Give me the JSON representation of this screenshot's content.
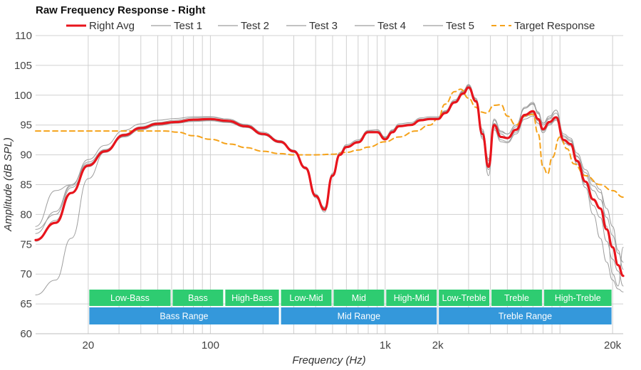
{
  "chart_data": {
    "type": "line",
    "title": "Raw Frequency Response - Right",
    "xlabel": "Frequency (Hz)",
    "ylabel": "Amplitude (dB SPL)",
    "xscale": "log",
    "xlim": [
      10,
      23000
    ],
    "ylim": [
      60,
      110
    ],
    "y_ticks": [
      60,
      65,
      70,
      75,
      80,
      85,
      90,
      95,
      100,
      105,
      110
    ],
    "x_ticks": [
      {
        "value": 20,
        "label": "20"
      },
      {
        "value": 100,
        "label": "100"
      },
      {
        "value": 1000,
        "label": "1k"
      },
      {
        "value": 2000,
        "label": "2k"
      },
      {
        "value": 20000,
        "label": "20k"
      }
    ],
    "grid": true,
    "legend": "top",
    "legend_entries": [
      {
        "name": "Right Avg",
        "color": "#e8141c",
        "style": "solid"
      },
      {
        "name": "Test 1",
        "color": "#9e9e9e",
        "style": "solid"
      },
      {
        "name": "Test 2",
        "color": "#9e9e9e",
        "style": "solid"
      },
      {
        "name": "Test 3",
        "color": "#9e9e9e",
        "style": "solid"
      },
      {
        "name": "Test 4",
        "color": "#9e9e9e",
        "style": "solid"
      },
      {
        "name": "Test 5",
        "color": "#9e9e9e",
        "style": "solid"
      },
      {
        "name": "Target Response",
        "color": "#f5a21a",
        "style": "dashed"
      }
    ],
    "series": [
      {
        "name": "Right Avg",
        "x": [
          10,
          13,
          16,
          20,
          25,
          32,
          40,
          50,
          63,
          80,
          100,
          125,
          160,
          200,
          250,
          300,
          350,
          400,
          450,
          500,
          550,
          600,
          700,
          800,
          900,
          1000,
          1100,
          1200,
          1400,
          1600,
          1800,
          2000,
          2200,
          2500,
          2800,
          3000,
          3300,
          3600,
          3900,
          4200,
          4600,
          5000,
          5600,
          6300,
          7000,
          7500,
          8000,
          8700,
          9500,
          10500,
          11500,
          12500,
          14000,
          15500,
          17000,
          18500,
          20000,
          21500,
          23000
        ],
        "y": [
          75.7,
          78.6,
          83.6,
          88.2,
          90.6,
          93.3,
          94.5,
          95.2,
          95.5,
          95.9,
          96.0,
          95.7,
          94.8,
          93.5,
          92.2,
          90.6,
          87.8,
          83.1,
          80.8,
          86.5,
          90.0,
          91.3,
          92.1,
          93.8,
          93.8,
          92.6,
          93.8,
          94.8,
          95.0,
          95.8,
          96.0,
          96.0,
          97.0,
          98.8,
          100.3,
          101.3,
          99.0,
          93.5,
          88.0,
          95.0,
          93.0,
          92.8,
          94.2,
          96.7,
          97.3,
          96.0,
          94.3,
          95.5,
          96.3,
          92.5,
          91.8,
          89.0,
          85.5,
          82.5,
          81.0,
          77.5,
          74.5,
          71.5,
          69.7
        ]
      },
      {
        "name": "Test 1",
        "x": [
          10,
          13,
          16,
          20,
          25,
          32,
          40,
          50,
          63,
          80,
          100,
          125,
          160,
          200,
          250,
          300,
          350,
          400,
          450,
          500,
          550,
          600,
          700,
          800,
          900,
          1000,
          1100,
          1200,
          1400,
          1600,
          1800,
          2000,
          2200,
          2500,
          2800,
          3000,
          3300,
          3600,
          3900,
          4200,
          4600,
          5000,
          5600,
          6300,
          7000,
          7500,
          8000,
          8700,
          9500,
          10500,
          11500,
          12500,
          14000,
          15500,
          17000,
          18500,
          20000,
          21500,
          23000
        ],
        "y": [
          77.5,
          80.0,
          84.8,
          89.2,
          91.6,
          94.1,
          95.2,
          95.8,
          96.1,
          96.4,
          96.4,
          96.0,
          95.0,
          93.6,
          92.2,
          90.5,
          87.6,
          82.8,
          80.4,
          86.3,
          89.9,
          91.3,
          92.2,
          94.0,
          94.2,
          93.0,
          94.1,
          95.0,
          95.2,
          96.0,
          96.2,
          96.2,
          97.3,
          99.2,
          100.8,
          101.8,
          99.5,
          94.3,
          89.3,
          95.8,
          93.8,
          93.5,
          95.0,
          97.8,
          98.5,
          97.0,
          95.3,
          96.5,
          97.5,
          93.0,
          92.3,
          89.8,
          86.5,
          84.0,
          82.5,
          79.5,
          76.5,
          73.5,
          72.0
        ]
      },
      {
        "name": "Test 2",
        "x": [
          10,
          13,
          16,
          20,
          25,
          32,
          40,
          50,
          63,
          80,
          100,
          125,
          160,
          200,
          250,
          300,
          350,
          400,
          450,
          500,
          550,
          600,
          700,
          800,
          900,
          1000,
          1100,
          1200,
          1400,
          1600,
          1800,
          2000,
          2200,
          2500,
          2800,
          3000,
          3300,
          3600,
          3900,
          4200,
          4600,
          5000,
          5600,
          6300,
          7000,
          7500,
          8000,
          8700,
          9500,
          10500,
          11500,
          12500,
          14000,
          15500,
          17000,
          18500,
          20000,
          21500,
          23000
        ],
        "y": [
          66.5,
          69.0,
          76.0,
          86.0,
          90.5,
          93.0,
          94.2,
          94.9,
          95.3,
          95.6,
          95.7,
          95.4,
          94.6,
          93.3,
          92.0,
          90.4,
          87.7,
          83.1,
          81.0,
          86.6,
          90.1,
          91.4,
          92.2,
          93.8,
          93.9,
          92.8,
          93.9,
          94.9,
          95.1,
          95.9,
          96.1,
          96.1,
          97.1,
          99.0,
          100.6,
          101.6,
          99.2,
          93.8,
          88.5,
          95.3,
          93.5,
          92.9,
          94.7,
          97.8,
          98.6,
          96.9,
          95.0,
          96.0,
          97.0,
          93.2,
          92.5,
          89.7,
          87.0,
          84.8,
          83.7,
          81.0,
          78.0,
          74.0,
          70.8
        ]
      },
      {
        "name": "Test 3",
        "x": [
          10,
          13,
          16,
          20,
          25,
          32,
          40,
          50,
          63,
          80,
          100,
          125,
          160,
          200,
          250,
          300,
          350,
          400,
          450,
          500,
          550,
          600,
          700,
          800,
          900,
          1000,
          1100,
          1200,
          1400,
          1600,
          1800,
          2000,
          2200,
          2500,
          2800,
          3000,
          3300,
          3600,
          3900,
          4200,
          4600,
          5000,
          5600,
          6300,
          7000,
          7500,
          8000,
          8700,
          9500,
          10500,
          11500,
          12500,
          14000,
          15500,
          17000,
          18500,
          20000,
          21500,
          23000
        ],
        "y": [
          78.0,
          84.0,
          85.0,
          88.8,
          90.9,
          93.5,
          94.7,
          95.4,
          95.8,
          96.2,
          96.3,
          96.0,
          95.1,
          93.8,
          92.4,
          90.8,
          88.0,
          83.4,
          81.2,
          86.9,
          90.4,
          91.7,
          92.5,
          94.1,
          94.2,
          93.0,
          94.2,
          95.2,
          95.4,
          96.2,
          96.4,
          96.4,
          97.4,
          99.2,
          100.7,
          101.7,
          99.4,
          94.0,
          89.0,
          96.0,
          94.0,
          93.5,
          95.0,
          98.0,
          98.8,
          97.2,
          95.3,
          96.2,
          97.5,
          93.5,
          92.8,
          90.3,
          87.5,
          85.5,
          84.2,
          78.0,
          70.0,
          68.0,
          74.5
        ]
      },
      {
        "name": "Test 4",
        "x": [
          10,
          13,
          16,
          20,
          25,
          32,
          40,
          50,
          63,
          80,
          100,
          125,
          160,
          200,
          250,
          300,
          350,
          400,
          450,
          500,
          550,
          600,
          700,
          800,
          900,
          1000,
          1100,
          1200,
          1400,
          1600,
          1800,
          2000,
          2200,
          2500,
          2800,
          3000,
          3300,
          3600,
          3900,
          4200,
          4600,
          5000,
          5600,
          6300,
          7000,
          7500,
          8000,
          8700,
          9500,
          10500,
          11500,
          12500,
          14000,
          15500,
          17000,
          18500,
          20000,
          21500,
          23000
        ],
        "y": [
          76.8,
          80.5,
          85.0,
          88.5,
          90.8,
          93.3,
          94.5,
          95.1,
          95.4,
          95.7,
          95.8,
          95.5,
          94.7,
          93.4,
          92.1,
          90.6,
          87.9,
          83.3,
          81.1,
          86.7,
          90.2,
          91.5,
          92.3,
          93.9,
          94.0,
          92.9,
          94.0,
          94.9,
          95.1,
          95.9,
          96.1,
          96.2,
          97.2,
          99.0,
          100.5,
          101.4,
          98.8,
          92.7,
          86.5,
          94.2,
          92.2,
          92.0,
          93.5,
          96.0,
          96.5,
          95.3,
          93.7,
          95.0,
          95.8,
          92.0,
          91.5,
          88.5,
          84.5,
          80.0,
          76.0,
          72.0,
          69.0,
          67.5,
          67.0
        ]
      },
      {
        "name": "Test 5",
        "x": [
          10,
          13,
          16,
          20,
          25,
          32,
          40,
          50,
          63,
          80,
          100,
          125,
          160,
          200,
          250,
          300,
          350,
          400,
          450,
          500,
          550,
          600,
          700,
          800,
          900,
          1000,
          1100,
          1200,
          1400,
          1600,
          1800,
          2000,
          2200,
          2500,
          2800,
          3000,
          3300,
          3600,
          3900,
          4200,
          4600,
          5000,
          5600,
          6300,
          7000,
          7500,
          8000,
          8700,
          9500,
          10500,
          11500,
          12500,
          14000,
          15500,
          17000,
          18500,
          20000,
          21500,
          23000
        ],
        "y": [
          75.5,
          79.0,
          84.5,
          88.0,
          90.4,
          93.1,
          94.3,
          95.0,
          95.4,
          95.7,
          95.8,
          95.5,
          94.6,
          93.3,
          92.0,
          90.5,
          87.7,
          83.0,
          80.7,
          86.4,
          90.0,
          91.3,
          92.1,
          93.7,
          93.8,
          92.7,
          93.8,
          94.8,
          95.0,
          95.8,
          96.0,
          96.1,
          97.1,
          98.9,
          100.4,
          101.3,
          98.9,
          93.0,
          87.5,
          94.5,
          92.5,
          92.2,
          93.8,
          96.4,
          97.0,
          95.7,
          94.0,
          95.2,
          96.0,
          92.3,
          91.7,
          88.8,
          85.0,
          81.5,
          79.5,
          75.5,
          72.5,
          70.5,
          68.0
        ]
      },
      {
        "name": "Target Response",
        "x": [
          10,
          20,
          30,
          40,
          55,
          65,
          80,
          100,
          130,
          160,
          200,
          250,
          300,
          400,
          500,
          600,
          700,
          800,
          1000,
          1200,
          1500,
          1800,
          2000,
          2200,
          2500,
          2700,
          3000,
          3300,
          3500,
          3800,
          4200,
          4600,
          5000,
          5600,
          6300,
          7000,
          7500,
          8000,
          8500,
          9000,
          10000,
          11000,
          12000,
          14000,
          17000,
          20000,
          23000
        ],
        "y": [
          94.0,
          94.0,
          94.0,
          94.0,
          94.0,
          93.8,
          93.2,
          92.6,
          91.8,
          91.2,
          90.6,
          90.2,
          90.0,
          90.0,
          90.1,
          90.4,
          90.8,
          91.3,
          92.2,
          93.0,
          94.0,
          95.0,
          96.0,
          98.5,
          100.6,
          101.0,
          99.5,
          98.0,
          97.2,
          97.0,
          98.3,
          98.4,
          96.5,
          95.0,
          96.5,
          96.8,
          93.5,
          88.0,
          86.8,
          89.5,
          93.0,
          91.0,
          88.5,
          86.5,
          85.0,
          84.0,
          82.9
        ]
      }
    ],
    "bands_row1": [
      {
        "label": "Low-Bass",
        "from": 20,
        "to": 60
      },
      {
        "label": "Bass",
        "from": 60,
        "to": 120
      },
      {
        "label": "High-Bass",
        "from": 120,
        "to": 250
      },
      {
        "label": "Low-Mid",
        "from": 250,
        "to": 500
      },
      {
        "label": "Mid",
        "from": 500,
        "to": 1000
      },
      {
        "label": "High-Mid",
        "from": 1000,
        "to": 2000
      },
      {
        "label": "Low-Treble",
        "from": 2000,
        "to": 4000
      },
      {
        "label": "Treble",
        "from": 4000,
        "to": 8000
      },
      {
        "label": "High-Treble",
        "from": 8000,
        "to": 20000
      }
    ],
    "bands_row2": [
      {
        "label": "Bass Range",
        "from": 20,
        "to": 250
      },
      {
        "label": "Mid Range",
        "from": 250,
        "to": 2000
      },
      {
        "label": "Treble Range",
        "from": 2000,
        "to": 20000
      }
    ],
    "colors": {
      "band_row1": "#2ecc71",
      "band_row2": "#3498db",
      "grid": "#d0d0d0",
      "avg": "#e8141c",
      "test": "#9e9e9e",
      "target": "#f5a21a"
    }
  }
}
